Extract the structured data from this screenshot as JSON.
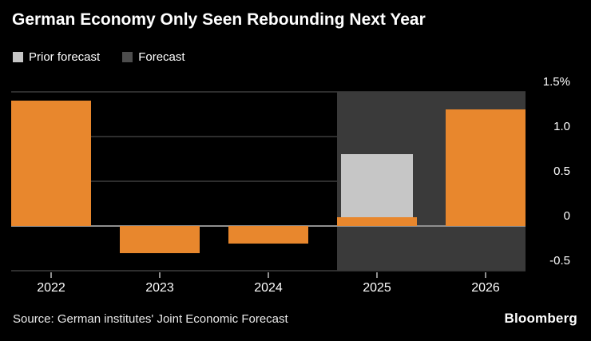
{
  "title": "German Economy Only Seen Rebounding Next Year",
  "legend": [
    {
      "label": "Prior forecast",
      "color": "#c6c6c6"
    },
    {
      "label": "Forecast",
      "color": "#4d4d4d"
    }
  ],
  "source": "Source: German institutes' Joint Economic Forecast",
  "branding": "Bloomberg",
  "chart_data": {
    "type": "bar",
    "title": "German Economy Only Seen Rebounding Next Year",
    "unit": "percent",
    "categories": [
      "2022",
      "2023",
      "2024",
      "2025",
      "2026"
    ],
    "series": [
      {
        "name": "Forecast",
        "color": "#e8872d",
        "values": [
          1.4,
          -0.3,
          -0.2,
          0.1,
          1.3
        ]
      },
      {
        "name": "Prior forecast",
        "color": "#c6c6c6",
        "values": [
          null,
          null,
          null,
          0.8,
          null
        ]
      }
    ],
    "yticks": [
      1.5,
      1.0,
      0.5,
      0,
      -0.5
    ],
    "ytick_labels": [
      "1.5%",
      "1.0",
      "0.5",
      "0",
      "-0.5"
    ],
    "ylim": [
      -0.65,
      1.55
    ],
    "legend_position": "top-left",
    "grid": true,
    "forecast_band": {
      "from": "2025",
      "to": "2026",
      "color": "#3a3a3a"
    },
    "colors": {
      "grid": "#2e2e2e",
      "zero_line": "#8f8f8f",
      "tick": "#8f8f8f",
      "background": "#000000"
    }
  }
}
